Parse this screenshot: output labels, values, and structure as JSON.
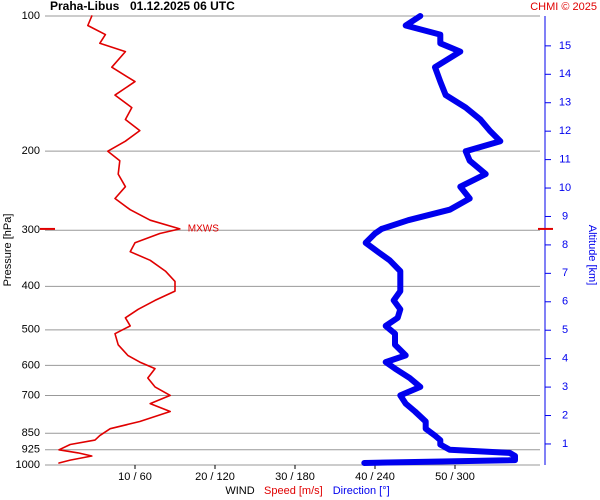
{
  "chart_data": {
    "type": "line",
    "title": "Praha-Libus",
    "subtitle": "01.12.2025 06 UTC",
    "credit": "CHMI © 2025",
    "y_label": "Pressure [hPa]",
    "y2_label": "Altitude [km]",
    "x_label": "WIND",
    "yscale": "log",
    "ylim": [
      1000,
      100
    ],
    "yticks": [
      100,
      200,
      300,
      400,
      500,
      600,
      700,
      850,
      925,
      1000
    ],
    "y2lim": [
      0.26,
      16.05
    ],
    "y2ticks": [
      1,
      2,
      3,
      4,
      5,
      6,
      7,
      8,
      9,
      10,
      11,
      12,
      13,
      14,
      15
    ],
    "xlim": [
      -1.25,
      60.625
    ],
    "x2lim": [
      -7.5,
      363.75
    ],
    "xticks": [
      {
        "value": 10,
        "label": "10 / 60"
      },
      {
        "value": 20,
        "label": "20 / 120"
      },
      {
        "value": 30,
        "label": "30 / 180"
      },
      {
        "value": 40,
        "label": "40 / 240"
      },
      {
        "value": 50,
        "label": "50 / 300"
      }
    ],
    "y": [
      990,
      975,
      955,
      940,
      925,
      900,
      880,
      860,
      830,
      800,
      760,
      730,
      700,
      670,
      640,
      610,
      590,
      570,
      540,
      510,
      490,
      470,
      450,
      430,
      410,
      390,
      370,
      350,
      335,
      320,
      305,
      298,
      285,
      270,
      255,
      240,
      225,
      210,
      200,
      190,
      180,
      170,
      160,
      150,
      140,
      130,
      120,
      115,
      110,
      105,
      100
    ],
    "series": [
      {
        "name": "Speed [m/s]",
        "color": "#e00000",
        "values": [
          0.5,
          1.9,
          4.6,
          2.9,
          0.5,
          1.9,
          5,
          5.6,
          6.9,
          10.6,
          14.4,
          11.9,
          14.4,
          12.5,
          11.6,
          12.5,
          10.6,
          9.1,
          7.9,
          7.5,
          9.4,
          8.8,
          10.4,
          12.5,
          15,
          15,
          13.8,
          11.9,
          9.4,
          10,
          13.1,
          15.6,
          11.9,
          9.4,
          7.5,
          8.8,
          7.9,
          8.1,
          6.6,
          8.8,
          10.6,
          8.8,
          9.6,
          7.5,
          10,
          7.1,
          8.8,
          5.6,
          6.3,
          4.1,
          4.6
        ]
      },
      {
        "name": "Direction [°]",
        "color": "#0000ee",
        "axis": "x2",
        "values": [
          232,
          345,
          345,
          341,
          296,
          289,
          289,
          285,
          278,
          278,
          270,
          263,
          259,
          274,
          266,
          255,
          248,
          263,
          255,
          255,
          248,
          257,
          259,
          254,
          259,
          259,
          259,
          251,
          242,
          233,
          240,
          245,
          265,
          296,
          311,
          304,
          323,
          311,
          308,
          334,
          326,
          319,
          308,
          293,
          289,
          285,
          304,
          289,
          289,
          263,
          274
        ]
      }
    ],
    "annotations": [
      {
        "text": "MXWS",
        "y": 298
      }
    ]
  }
}
